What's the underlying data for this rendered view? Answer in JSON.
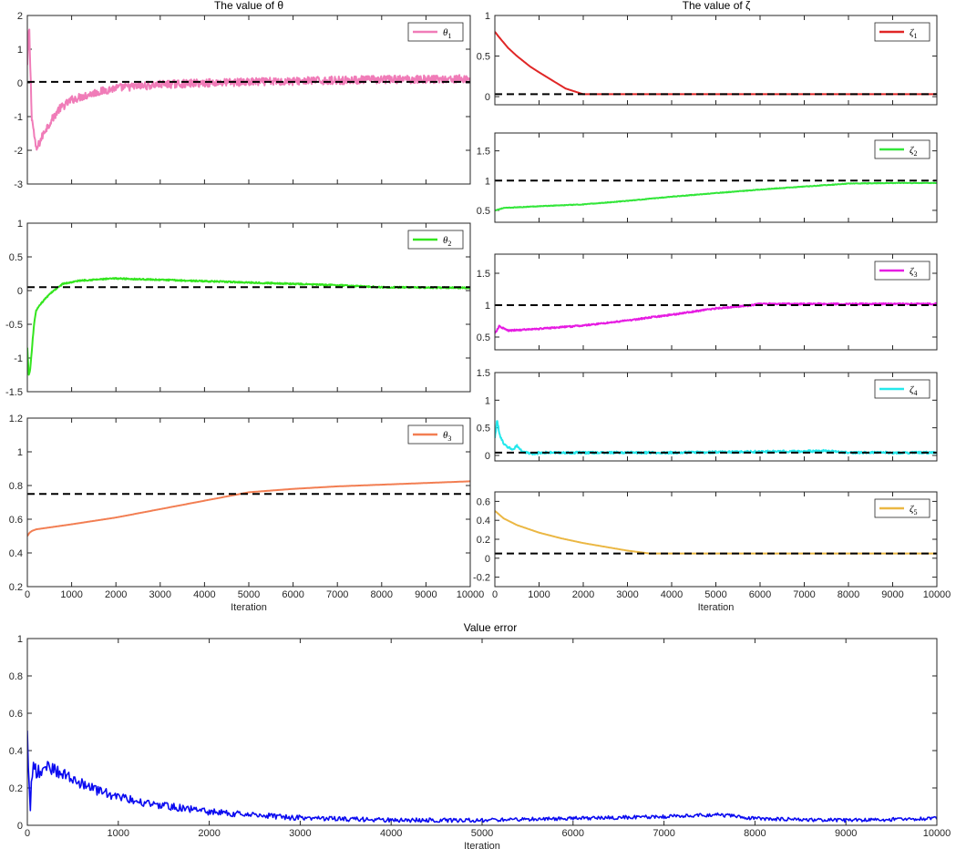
{
  "figure": {
    "title_theta": "The value of θ",
    "title_zeta": "The value of ζ",
    "title_error": "Value error"
  },
  "colors": {
    "theta1": "#f07cb8",
    "theta2": "#33e51e",
    "theta3": "#f27e52",
    "zeta1": "#e02626",
    "zeta2": "#33e63a",
    "zeta3": "#e61ce2",
    "zeta4": "#25e8ec",
    "zeta5": "#ebb743",
    "error": "#0a0af0",
    "reference": "#000000"
  },
  "chart_data": [
    {
      "id": "theta1",
      "type": "line",
      "title": "The value of θ",
      "xlim": [
        0,
        10000
      ],
      "ylim": [
        -3,
        2
      ],
      "yticks": [
        -3,
        -2,
        -1,
        0,
        1,
        2
      ],
      "yticklabels": [
        "-3",
        "-2",
        "-1",
        "0",
        "1",
        "2"
      ],
      "xticks": [
        0,
        1000,
        2000,
        3000,
        4000,
        5000,
        6000,
        7000,
        8000,
        9000,
        10000
      ],
      "xticklabels": [],
      "legend": {
        "label": "θ",
        "sub": "1",
        "position": "top-right"
      },
      "reference": 0.03,
      "color_key": "theta1",
      "series": [
        {
          "name": "θ1",
          "noise": 0.12,
          "x": [
            0,
            40,
            100,
            200,
            400,
            700,
            1000,
            1500,
            2000,
            3000,
            4000,
            6000,
            8000,
            10000
          ],
          "y": [
            0.5,
            1.7,
            -1.0,
            -2.0,
            -1.4,
            -0.8,
            -0.5,
            -0.3,
            -0.15,
            -0.05,
            0.0,
            0.05,
            0.1,
            0.12
          ]
        }
      ]
    },
    {
      "id": "theta2",
      "type": "line",
      "xlim": [
        0,
        10000
      ],
      "ylim": [
        -1.5,
        1
      ],
      "yticks": [
        -1.5,
        -1,
        -0.5,
        0,
        0.5,
        1
      ],
      "yticklabels": [
        "-1.5",
        "-1",
        "-0.5",
        "0",
        "0.5",
        "1"
      ],
      "xticks": [
        0,
        1000,
        2000,
        3000,
        4000,
        5000,
        6000,
        7000,
        8000,
        9000,
        10000
      ],
      "xticklabels": [],
      "legend": {
        "label": "θ",
        "sub": "2",
        "position": "top-right"
      },
      "reference": 0.05,
      "color_key": "theta2",
      "series": [
        {
          "name": "θ2",
          "noise": 0.01,
          "x": [
            0,
            30,
            60,
            100,
            150,
            200,
            300,
            500,
            800,
            1200,
            2000,
            3000,
            5000,
            7000,
            8000,
            10000
          ],
          "y": [
            -0.85,
            -1.25,
            -1.2,
            -0.9,
            -0.5,
            -0.3,
            -0.2,
            -0.05,
            0.1,
            0.15,
            0.18,
            0.16,
            0.12,
            0.08,
            0.05,
            0.04
          ]
        }
      ]
    },
    {
      "id": "theta3",
      "type": "line",
      "xlim": [
        0,
        10000
      ],
      "ylim": [
        0.2,
        1.2
      ],
      "yticks": [
        0.2,
        0.4,
        0.6,
        0.8,
        1,
        1.2
      ],
      "yticklabels": [
        "0.2",
        "0.4",
        "0.6",
        "0.8",
        "1",
        "1.2"
      ],
      "xticks": [
        0,
        1000,
        2000,
        3000,
        4000,
        5000,
        6000,
        7000,
        8000,
        9000,
        10000
      ],
      "xticklabels": [
        "0",
        "1000",
        "2000",
        "3000",
        "4000",
        "5000",
        "6000",
        "7000",
        "8000",
        "9000",
        "10000"
      ],
      "xlabel": "Iteration",
      "legend": {
        "label": "θ",
        "sub": "3",
        "position": "top-right"
      },
      "reference": 0.75,
      "color_key": "theta3",
      "series": [
        {
          "name": "θ3",
          "noise": 0.0,
          "x": [
            0,
            50,
            100,
            200,
            1000,
            2000,
            3000,
            4000,
            5000,
            6000,
            7000,
            8000,
            9000,
            10000
          ],
          "y": [
            0.5,
            0.52,
            0.53,
            0.54,
            0.57,
            0.61,
            0.66,
            0.71,
            0.76,
            0.78,
            0.795,
            0.805,
            0.815,
            0.825
          ]
        }
      ]
    },
    {
      "id": "zeta1",
      "type": "line",
      "title": "The value of ζ",
      "xlim": [
        0,
        10000
      ],
      "ylim": [
        -0.1,
        1
      ],
      "yticks": [
        0,
        0.5,
        1
      ],
      "yticklabels": [
        "0",
        "0.5",
        "1"
      ],
      "xticks": [
        0,
        1000,
        2000,
        3000,
        4000,
        5000,
        6000,
        7000,
        8000,
        9000,
        10000
      ],
      "xticklabels": [],
      "legend": {
        "label": "ζ",
        "sub": "1",
        "position": "top-right"
      },
      "reference": 0.03,
      "color_key": "zeta1",
      "series": [
        {
          "name": "ζ1",
          "noise": 0.0,
          "x": [
            0,
            100,
            300,
            500,
            800,
            1000,
            1300,
            1600,
            2000,
            10000
          ],
          "y": [
            0.8,
            0.73,
            0.6,
            0.5,
            0.37,
            0.3,
            0.2,
            0.1,
            0.03,
            0.03
          ]
        }
      ]
    },
    {
      "id": "zeta2",
      "type": "line",
      "xlim": [
        0,
        10000
      ],
      "ylim": [
        0.3,
        1.8
      ],
      "yticks": [
        0.5,
        1,
        1.5
      ],
      "yticklabels": [
        "0.5",
        "1",
        "1.5"
      ],
      "xticks": [
        0,
        1000,
        2000,
        3000,
        4000,
        5000,
        6000,
        7000,
        8000,
        9000,
        10000
      ],
      "xticklabels": [],
      "legend": {
        "label": "ζ",
        "sub": "2",
        "position": "top-right"
      },
      "reference": 1.0,
      "color_key": "zeta2",
      "series": [
        {
          "name": "ζ2",
          "noise": 0.005,
          "x": [
            0,
            200,
            1000,
            2000,
            3000,
            4000,
            5000,
            6000,
            7000,
            8000,
            9000,
            10000
          ],
          "y": [
            0.5,
            0.54,
            0.57,
            0.6,
            0.66,
            0.73,
            0.79,
            0.85,
            0.9,
            0.95,
            0.96,
            0.96
          ]
        }
      ]
    },
    {
      "id": "zeta3",
      "type": "line",
      "xlim": [
        0,
        10000
      ],
      "ylim": [
        0.3,
        1.8
      ],
      "yticks": [
        0.5,
        1,
        1.5
      ],
      "yticklabels": [
        "0.5",
        "1",
        "1.5"
      ],
      "xticks": [
        0,
        1000,
        2000,
        3000,
        4000,
        5000,
        6000,
        7000,
        8000,
        9000,
        10000
      ],
      "xticklabels": [],
      "legend": {
        "label": "ζ",
        "sub": "3",
        "position": "top-right"
      },
      "reference": 1.0,
      "color_key": "zeta3",
      "series": [
        {
          "name": "ζ3",
          "noise": 0.012,
          "x": [
            0,
            100,
            300,
            1000,
            2000,
            3000,
            4000,
            5000,
            5700,
            6000,
            8000,
            10000
          ],
          "y": [
            0.55,
            0.67,
            0.6,
            0.63,
            0.68,
            0.76,
            0.85,
            0.95,
            0.99,
            1.02,
            1.02,
            1.02
          ]
        }
      ]
    },
    {
      "id": "zeta4",
      "type": "line",
      "xlim": [
        0,
        10000
      ],
      "ylim": [
        -0.1,
        1.5
      ],
      "yticks": [
        0,
        0.5,
        1,
        1.5
      ],
      "yticklabels": [
        "0",
        "0.5",
        "1",
        "1.5"
      ],
      "xticks": [
        0,
        1000,
        2000,
        3000,
        4000,
        5000,
        6000,
        7000,
        8000,
        9000,
        10000
      ],
      "xticklabels": [],
      "legend": {
        "label": "ζ",
        "sub": "4",
        "position": "top-right"
      },
      "reference": 0.05,
      "color_key": "zeta4",
      "series": [
        {
          "name": "ζ4",
          "noise": 0.02,
          "x": [
            0,
            50,
            100,
            200,
            300,
            400,
            500,
            600,
            700,
            900,
            1000,
            2000,
            4000,
            7500,
            8000,
            10000
          ],
          "y": [
            0.3,
            0.65,
            0.4,
            0.2,
            0.15,
            0.1,
            0.18,
            0.08,
            0.05,
            0.02,
            0.05,
            0.05,
            0.05,
            0.08,
            0.05,
            0.05
          ]
        }
      ]
    },
    {
      "id": "zeta5",
      "type": "line",
      "xlim": [
        0,
        10000
      ],
      "ylim": [
        -0.3,
        0.7
      ],
      "yticks": [
        -0.2,
        0,
        0.2,
        0.4,
        0.6
      ],
      "yticklabels": [
        "-0.2",
        "0",
        "0.2",
        "0.4",
        "0.6"
      ],
      "xticks": [
        0,
        1000,
        2000,
        3000,
        4000,
        5000,
        6000,
        7000,
        8000,
        9000,
        10000
      ],
      "xticklabels": [
        "0",
        "1000",
        "2000",
        "3000",
        "4000",
        "5000",
        "6000",
        "7000",
        "8000",
        "9000",
        "10000"
      ],
      "xlabel": "Iteration",
      "legend": {
        "label": "ζ",
        "sub": "5",
        "position": "top-right"
      },
      "reference": 0.05,
      "color_key": "zeta5",
      "series": [
        {
          "name": "ζ5",
          "noise": 0.0,
          "x": [
            0,
            200,
            500,
            1000,
            1500,
            2000,
            2500,
            3000,
            3500,
            10000
          ],
          "y": [
            0.5,
            0.42,
            0.35,
            0.27,
            0.21,
            0.16,
            0.12,
            0.08,
            0.05,
            0.05
          ]
        }
      ]
    },
    {
      "id": "error",
      "type": "line",
      "title": "Value error",
      "xlim": [
        0,
        10000
      ],
      "ylim": [
        0,
        1
      ],
      "yticks": [
        0,
        0.2,
        0.4,
        0.6,
        0.8,
        1
      ],
      "yticklabels": [
        "0",
        "0.2",
        "0.4",
        "0.6",
        "0.8",
        "1"
      ],
      "xticks": [
        0,
        1000,
        2000,
        3000,
        4000,
        5000,
        6000,
        7000,
        8000,
        9000,
        10000
      ],
      "xticklabels": [
        "0",
        "1000",
        "2000",
        "3000",
        "4000",
        "5000",
        "6000",
        "7000",
        "8000",
        "9000",
        "10000"
      ],
      "xlabel": "Iteration",
      "color_key": "error",
      "series": [
        {
          "name": "error",
          "noise": 0.06,
          "x": [
            0,
            30,
            60,
            100,
            200,
            400,
            700,
            1000,
            1500,
            2000,
            3000,
            4000,
            5000,
            6000,
            7000,
            7600,
            8000,
            9000,
            10000
          ],
          "y": [
            0.45,
            0.05,
            0.3,
            0.25,
            0.3,
            0.25,
            0.18,
            0.13,
            0.09,
            0.06,
            0.03,
            0.02,
            0.02,
            0.03,
            0.04,
            0.05,
            0.03,
            0.02,
            0.03
          ]
        }
      ]
    }
  ]
}
